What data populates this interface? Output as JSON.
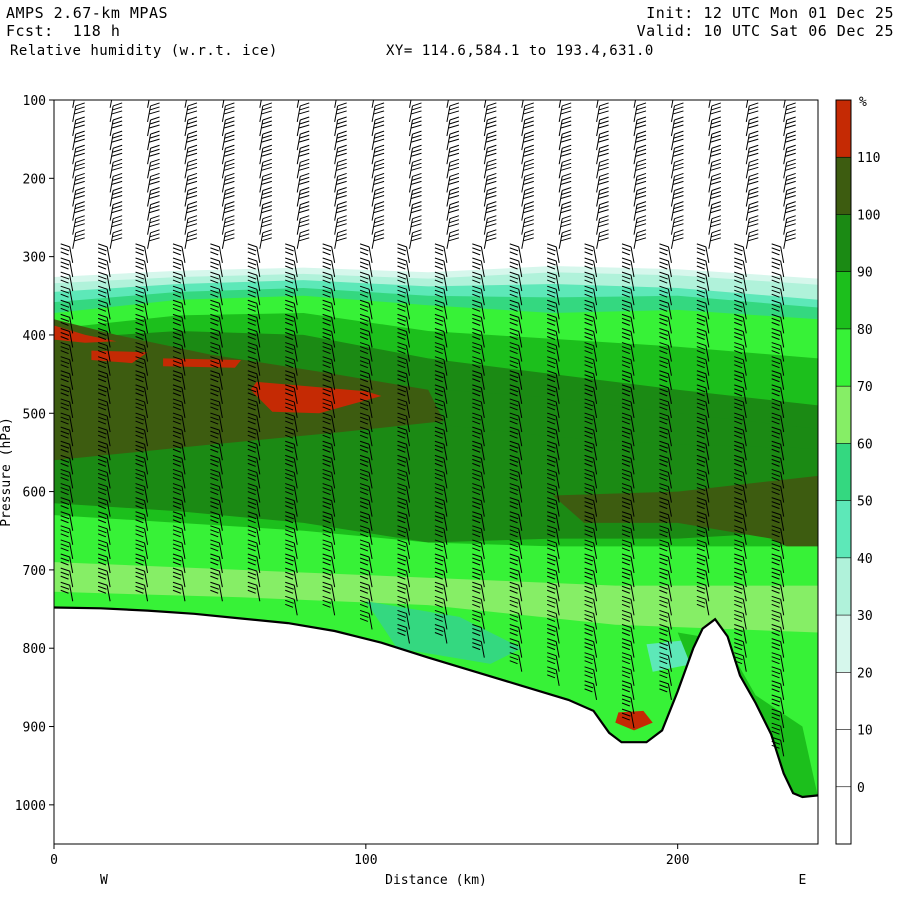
{
  "header": {
    "model": "AMPS 2.67-km MPAS",
    "forecast": "Fcst:  118 h",
    "field": "Relative humidity (w.r.t. ice)",
    "xy_range": "XY= 114.6,584.1 to 193.4,631.0",
    "init": "Init: 12 UTC Mon 01 Dec 25",
    "valid": "Valid: 10 UTC Sat 06 Dec 25"
  },
  "chart_data": {
    "type": "heatmap",
    "subtype": "vertical cross-section",
    "xlabel": "Distance (km)",
    "ylabel": "Pressure (hPa)",
    "xlim": [
      0,
      245
    ],
    "ylim": [
      1050,
      100
    ],
    "x_ticks": [
      0,
      100,
      200
    ],
    "y_ticks": [
      100,
      200,
      300,
      400,
      500,
      600,
      700,
      800,
      900,
      1000
    ],
    "left_endpoint_label": "W",
    "right_endpoint_label": "E",
    "colorbar": {
      "unit": "%",
      "levels": [
        0,
        10,
        20,
        30,
        40,
        50,
        60,
        70,
        80,
        90,
        100,
        110
      ],
      "colors": [
        "#ffffff",
        "#ffffff",
        "#ffffff",
        "#d6f7ec",
        "#b0f2da",
        "#5de8b8",
        "#34d880",
        "#86ee66",
        "#37f237",
        "#1cbf1c",
        "#1b8a14",
        "#3d5c10",
        "#c52a04"
      ]
    },
    "terrain_surface": [
      [
        0,
        748
      ],
      [
        15,
        749
      ],
      [
        30,
        752
      ],
      [
        45,
        756
      ],
      [
        60,
        762
      ],
      [
        75,
        768
      ],
      [
        90,
        778
      ],
      [
        105,
        793
      ],
      [
        120,
        812
      ],
      [
        135,
        830
      ],
      [
        150,
        848
      ],
      [
        165,
        866
      ],
      [
        173,
        880
      ],
      [
        178,
        908
      ],
      [
        182,
        920
      ],
      [
        190,
        920
      ],
      [
        195,
        905
      ],
      [
        200,
        855
      ],
      [
        205,
        800
      ],
      [
        208,
        775
      ],
      [
        212,
        763
      ],
      [
        216,
        785
      ],
      [
        220,
        835
      ],
      [
        225,
        870
      ],
      [
        230,
        910
      ],
      [
        234,
        960
      ],
      [
        237,
        985
      ],
      [
        240,
        990
      ],
      [
        245,
        988
      ]
    ],
    "annotations": [
      "wind barbs plotted on pressure levels along the section"
    ]
  }
}
